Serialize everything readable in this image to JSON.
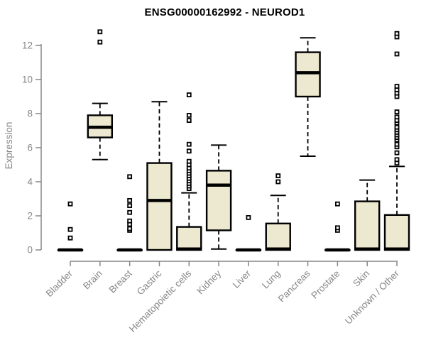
{
  "chart_data": {
    "type": "boxplot",
    "title": "ENSG00000162992 - NEUROD1",
    "ylabel": "Expression",
    "xlabel": "",
    "yticks": [
      0,
      2,
      4,
      6,
      8,
      10,
      12
    ],
    "ylim": [
      0,
      13.3
    ],
    "grid": false,
    "legend": "none",
    "categories": [
      "Bladder",
      "Brain",
      "Breast",
      "Gastric",
      "Hematopoietic cells",
      "Kidney",
      "Liver",
      "Lung",
      "Pancreas",
      "Prostate",
      "Skin",
      "Unknown / Other"
    ],
    "boxes": [
      {
        "category": "Bladder",
        "low": 0,
        "q1": 0,
        "median": 0,
        "q3": 0,
        "high": 0,
        "outliers": [
          0.7,
          1.2,
          2.7
        ]
      },
      {
        "category": "Brain",
        "low": 5.3,
        "q1": 6.6,
        "median": 7.2,
        "q3": 7.9,
        "high": 8.6,
        "outliers": [
          12.2,
          12.8
        ]
      },
      {
        "category": "Breast",
        "low": 0,
        "q1": 0,
        "median": 0,
        "q3": 0,
        "high": 0,
        "outliers": [
          1.15,
          1.25,
          1.5,
          1.7,
          2.2,
          2.6,
          2.9,
          4.3
        ]
      },
      {
        "category": "Gastric",
        "low": 0,
        "q1": 0,
        "median": 2.9,
        "q3": 5.1,
        "high": 8.7,
        "outliers": []
      },
      {
        "category": "Hematopoietic cells",
        "low": 0,
        "q1": 0,
        "median": 0.05,
        "q3": 1.35,
        "high": 3.35,
        "outliers": [
          3.6,
          3.75,
          3.9,
          4.05,
          4.2,
          4.35,
          4.5,
          4.65,
          4.8,
          5.0,
          5.2,
          5.8,
          6.2,
          7.6,
          7.9,
          9.1
        ]
      },
      {
        "category": "Kidney",
        "low": 0.05,
        "q1": 1.15,
        "median": 3.8,
        "q3": 4.65,
        "high": 6.15,
        "outliers": []
      },
      {
        "category": "Liver",
        "low": 0,
        "q1": 0,
        "median": 0,
        "q3": 0,
        "high": 0,
        "outliers": [
          1.9
        ]
      },
      {
        "category": "Lung",
        "low": 0,
        "q1": 0,
        "median": 0.05,
        "q3": 1.55,
        "high": 3.2,
        "outliers": [
          4.0,
          4.35
        ]
      },
      {
        "category": "Pancreas",
        "low": 5.5,
        "q1": 9.0,
        "median": 10.4,
        "q3": 11.6,
        "high": 12.45,
        "outliers": []
      },
      {
        "category": "Prostate",
        "low": 0,
        "q1": 0,
        "median": 0,
        "q3": 0,
        "high": 0,
        "outliers": [
          1.15,
          1.3,
          2.7
        ]
      },
      {
        "category": "Skin",
        "low": 0,
        "q1": 0,
        "median": 0.05,
        "q3": 2.85,
        "high": 4.1,
        "outliers": []
      },
      {
        "category": "Unknown / Other",
        "low": 0,
        "q1": 0,
        "median": 0.05,
        "q3": 2.05,
        "high": 4.9,
        "outliers": [
          5.1,
          5.3,
          5.7,
          6.05,
          6.2,
          6.45,
          6.6,
          6.75,
          6.9,
          7.05,
          7.2,
          7.45,
          7.6,
          7.8,
          8.1,
          9.0,
          9.2,
          9.4,
          9.6,
          11.5,
          12.5,
          12.7
        ]
      }
    ],
    "colors": {
      "box_fill": "#EDE8D0",
      "box_border": "#000000",
      "median": "#000000",
      "whisker": "#000000",
      "outlier": "#000000",
      "axis": "#878787",
      "tick_label": "#878787",
      "title": "#000000",
      "background": "#FFFFFF"
    }
  }
}
